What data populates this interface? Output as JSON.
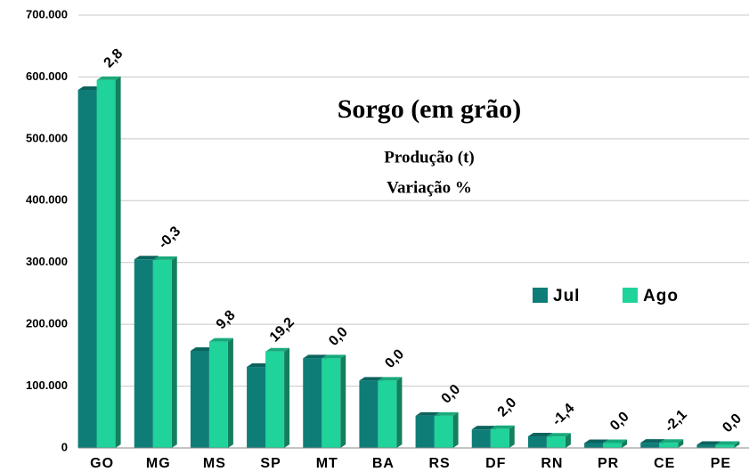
{
  "chart_data": {
    "type": "bar",
    "title": "Sorgo (em grão)",
    "subtitle": [
      "Produção (t)",
      "Variação %"
    ],
    "categories": [
      "GO",
      "MG",
      "MS",
      "SP",
      "MT",
      "BA",
      "RS",
      "DF",
      "RN",
      "PR",
      "CE",
      "PE"
    ],
    "series": [
      {
        "name": "Jul",
        "color": "#0f7d77",
        "values": [
          579000,
          305000,
          157000,
          131000,
          145000,
          109000,
          52000,
          30000,
          18700,
          8000,
          8500,
          5000
        ]
      },
      {
        "name": "Ago",
        "color": "#1fd39b",
        "values": [
          595000,
          304000,
          172000,
          156000,
          145000,
          109000,
          52000,
          30600,
          18400,
          8000,
          8300,
          5000
        ]
      }
    ],
    "variation": {
      "values": [
        2.8,
        -0.3,
        9.8,
        19.2,
        0.0,
        0.0,
        0.0,
        2.0,
        -1.4,
        0.0,
        -2.1,
        0.0
      ],
      "value_labels": [
        "2,8",
        "-0,3",
        "9,8",
        "19,2",
        "0,0",
        "0,0",
        "0,0",
        "2,0",
        "-1,4",
        "0,0",
        "-2,1",
        "0,0"
      ]
    },
    "ylim": [
      0,
      700000
    ],
    "yticks": [
      0,
      {
        "value": 100000,
        "label": "100.000"
      },
      {
        "value": 200000,
        "label": "200.000"
      },
      {
        "value": 300000,
        "label": "300.000"
      },
      {
        "value": 400000,
        "label": "400.000"
      },
      {
        "value": 500000,
        "label": "500.000"
      },
      {
        "value": 600000,
        "label": "600.000"
      },
      {
        "value": 700000,
        "label": "700.000"
      }
    ],
    "grid": true,
    "legend": "right"
  }
}
